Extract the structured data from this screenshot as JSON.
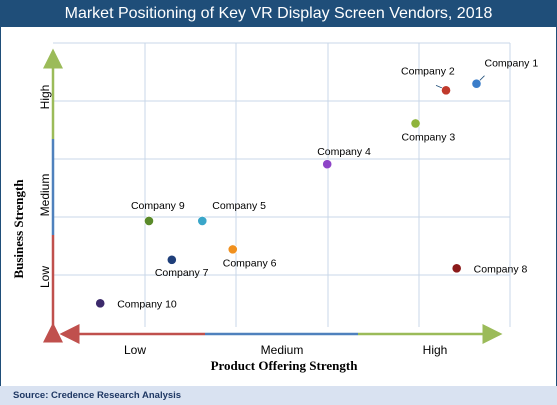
{
  "title": "Market Positioning of Key VR Display Screen Vendors, 2018",
  "source": "Source: Credence Research Analysis",
  "colors": {
    "title_bg": "#1f4e79",
    "source_bg": "#d9e2f1",
    "grid": "#c9d7e8",
    "arrow_low": "#c0504d",
    "arrow_mid": "#4f81bd",
    "arrow_high": "#9bbb59"
  },
  "chart_data": {
    "type": "scatter",
    "title": "Market Positioning of Key VR Display Screen Vendors, 2018",
    "xlabel": "Product Offering Strength",
    "ylabel": "Business Strength",
    "x_tick_labels": [
      "Low",
      "Medium",
      "High"
    ],
    "y_tick_labels": [
      "Low",
      "Medium",
      "High"
    ],
    "xlim": [
      0,
      3
    ],
    "ylim": [
      0,
      3
    ],
    "grid": true,
    "points": [
      {
        "name": "Company 1",
        "x": 2.78,
        "y": 2.57,
        "color": "#3a7dc9"
      },
      {
        "name": "Company 2",
        "x": 2.58,
        "y": 2.5,
        "color": "#c0392b"
      },
      {
        "name": "Company 3",
        "x": 2.38,
        "y": 2.15,
        "color": "#8db33a"
      },
      {
        "name": "Company 4",
        "x": 1.8,
        "y": 1.72,
        "color": "#8e44c7"
      },
      {
        "name": "Company 5",
        "x": 0.98,
        "y": 1.12,
        "color": "#3aa6c9"
      },
      {
        "name": "Company 6",
        "x": 1.18,
        "y": 0.82,
        "color": "#f0901e"
      },
      {
        "name": "Company 7",
        "x": 0.78,
        "y": 0.71,
        "color": "#1f3f7a"
      },
      {
        "name": "Company 8",
        "x": 2.65,
        "y": 0.62,
        "color": "#8b1a1a"
      },
      {
        "name": "Company 9",
        "x": 0.63,
        "y": 1.12,
        "color": "#5a8a2a"
      },
      {
        "name": "Company 10",
        "x": 0.31,
        "y": 0.25,
        "color": "#3c2a6b"
      }
    ]
  }
}
